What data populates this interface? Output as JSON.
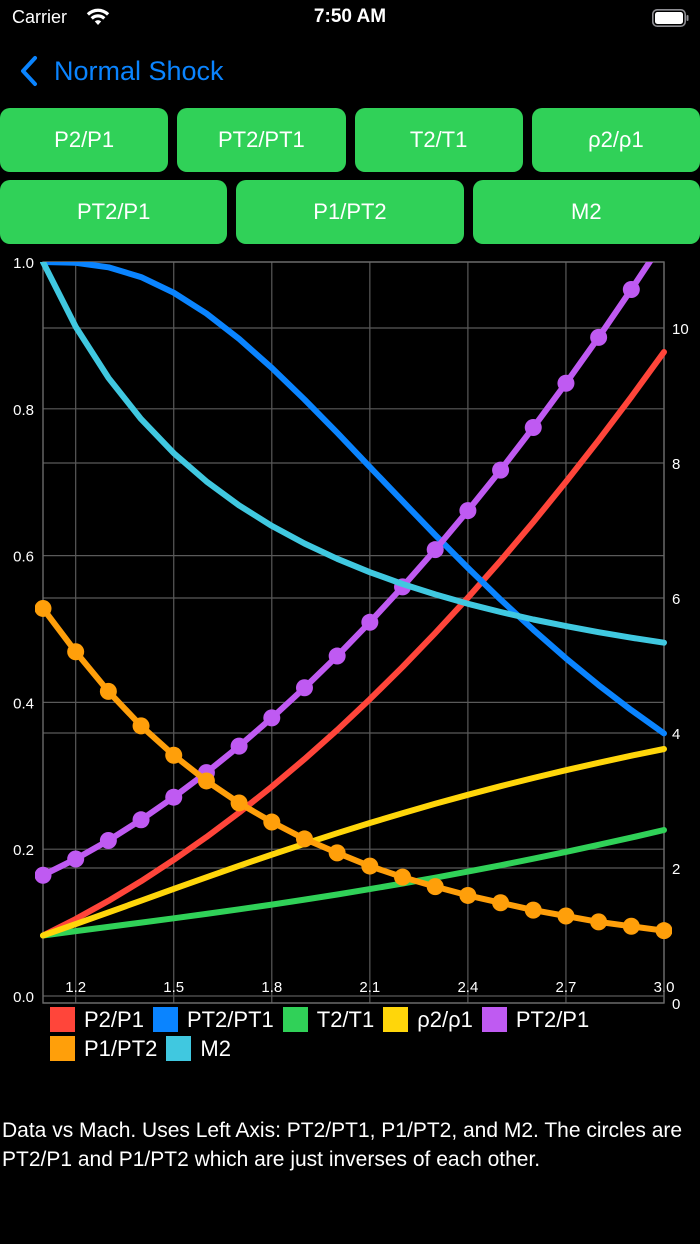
{
  "status_bar": {
    "carrier": "Carrier",
    "time": "7:50 AM",
    "wifi_icon": "wifi-icon",
    "battery_icon": "battery-full-icon"
  },
  "nav": {
    "back_label": "Normal Shock",
    "back_icon": "chevron-left-icon",
    "accent_color": "#0a84ff"
  },
  "buttons": {
    "row1": [
      "P2/P1",
      "PT2/PT1",
      "T2/T1",
      "ρ2/ρ1"
    ],
    "row2": [
      "PT2/P1",
      "P1/PT2",
      "M2"
    ],
    "color": "#30d158"
  },
  "chart_data": {
    "type": "line",
    "title": "",
    "xlabel": "",
    "ylabel_left": "",
    "ylabel_right": "",
    "x_tick_labels": [
      "1.2",
      "1.5",
      "1.8",
      "2.1",
      "2.4",
      "2.7",
      "3.0"
    ],
    "x_tick_indices": [
      1,
      4,
      7,
      10,
      13,
      16,
      19
    ],
    "x": [
      1.1,
      1.2,
      1.3,
      1.4,
      1.5,
      1.6,
      1.7,
      1.8,
      1.9,
      2.0,
      2.1,
      2.2,
      2.3,
      2.4,
      2.5,
      2.6,
      2.7,
      2.8,
      2.9,
      3.0
    ],
    "left_axis": {
      "ticks": [
        "0.0",
        "0.2",
        "0.4",
        "0.6",
        "0.8",
        "1.0"
      ],
      "range": [
        0,
        1.0
      ]
    },
    "right_axis": {
      "ticks": [
        "0",
        "2",
        "4",
        "6",
        "8",
        "10"
      ],
      "range": [
        0,
        11.1
      ]
    },
    "grid": true,
    "legend_position": "bottom",
    "series": [
      {
        "name": "P2/P1",
        "color": "#ff453a",
        "axis": "right",
        "markers": false,
        "values": [
          1.0,
          1.245,
          1.513,
          1.805,
          2.12,
          2.458,
          2.82,
          3.205,
          3.613,
          4.045,
          4.5,
          4.978,
          5.48,
          6.005,
          6.553,
          7.125,
          7.72,
          8.338,
          8.98,
          9.645
        ]
      },
      {
        "name": "PT2/PT1",
        "color": "#0a84ff",
        "axis": "left",
        "markers": false,
        "values": [
          1.0,
          0.9989,
          0.9928,
          0.9794,
          0.9582,
          0.9298,
          0.8952,
          0.8557,
          0.8127,
          0.7674,
          0.7209,
          0.6742,
          0.6281,
          0.5833,
          0.5401,
          0.499,
          0.4601,
          0.4236,
          0.3895,
          0.3577
        ]
      },
      {
        "name": "T2/T1",
        "color": "#30d158",
        "axis": "right",
        "markers": false,
        "values": [
          1.0,
          1.065,
          1.128,
          1.191,
          1.255,
          1.32,
          1.388,
          1.458,
          1.532,
          1.608,
          1.688,
          1.77,
          1.857,
          1.947,
          2.04,
          2.138,
          2.238,
          2.343,
          2.451,
          2.563
        ]
      },
      {
        "name": "ρ2/ρ1",
        "color": "#ffd60a",
        "axis": "right",
        "markers": false,
        "values": [
          1.0,
          1.169,
          1.342,
          1.516,
          1.69,
          1.862,
          2.032,
          2.198,
          2.359,
          2.516,
          2.667,
          2.812,
          2.951,
          3.085,
          3.212,
          3.333,
          3.449,
          3.559,
          3.664,
          3.763
        ]
      },
      {
        "name": "PT2/P1",
        "color": "#bf5af2",
        "axis": "right",
        "markers": true,
        "values": [
          1.893,
          2.133,
          2.408,
          2.714,
          3.049,
          3.413,
          3.805,
          4.224,
          4.67,
          5.14,
          5.64,
          6.165,
          6.716,
          7.294,
          7.895,
          8.526,
          9.181,
          9.861,
          10.57,
          11.3
        ]
      },
      {
        "name": "P1/PT2",
        "color": "#ff9f0a",
        "axis": "left",
        "markers": true,
        "values": [
          0.528,
          0.469,
          0.415,
          0.368,
          0.328,
          0.293,
          0.263,
          0.237,
          0.214,
          0.195,
          0.177,
          0.162,
          0.149,
          0.137,
          0.127,
          0.117,
          0.109,
          0.101,
          0.095,
          0.089
        ]
      },
      {
        "name": "M2",
        "color": "#40c8e0",
        "axis": "left",
        "markers": false,
        "values": [
          1.0,
          0.9118,
          0.8422,
          0.786,
          0.7397,
          0.7011,
          0.6684,
          0.6405,
          0.6165,
          0.5956,
          0.5774,
          0.5613,
          0.5471,
          0.5344,
          0.5231,
          0.513,
          0.5039,
          0.4956,
          0.4882,
          0.4814
        ]
      }
    ]
  },
  "legend": {
    "row1": [
      {
        "label": "P2/P1",
        "color": "#ff453a"
      },
      {
        "label": "PT2/PT1",
        "color": "#0a84ff"
      },
      {
        "label": "T2/T1",
        "color": "#30d158"
      },
      {
        "label": "ρ2/ρ1",
        "color": "#ffd60a"
      },
      {
        "label": "PT2/P1",
        "color": "#bf5af2"
      }
    ],
    "row2": [
      {
        "label": "P1/PT2",
        "color": "#ff9f0a"
      },
      {
        "label": "M2",
        "color": "#40c8e0"
      }
    ]
  },
  "caption": "Data vs Mach.  Uses Left Axis: PT2/PT1, P1/PT2, and M2.  The circles are PT2/P1 and P1/PT2 which are just inverses of each other."
}
